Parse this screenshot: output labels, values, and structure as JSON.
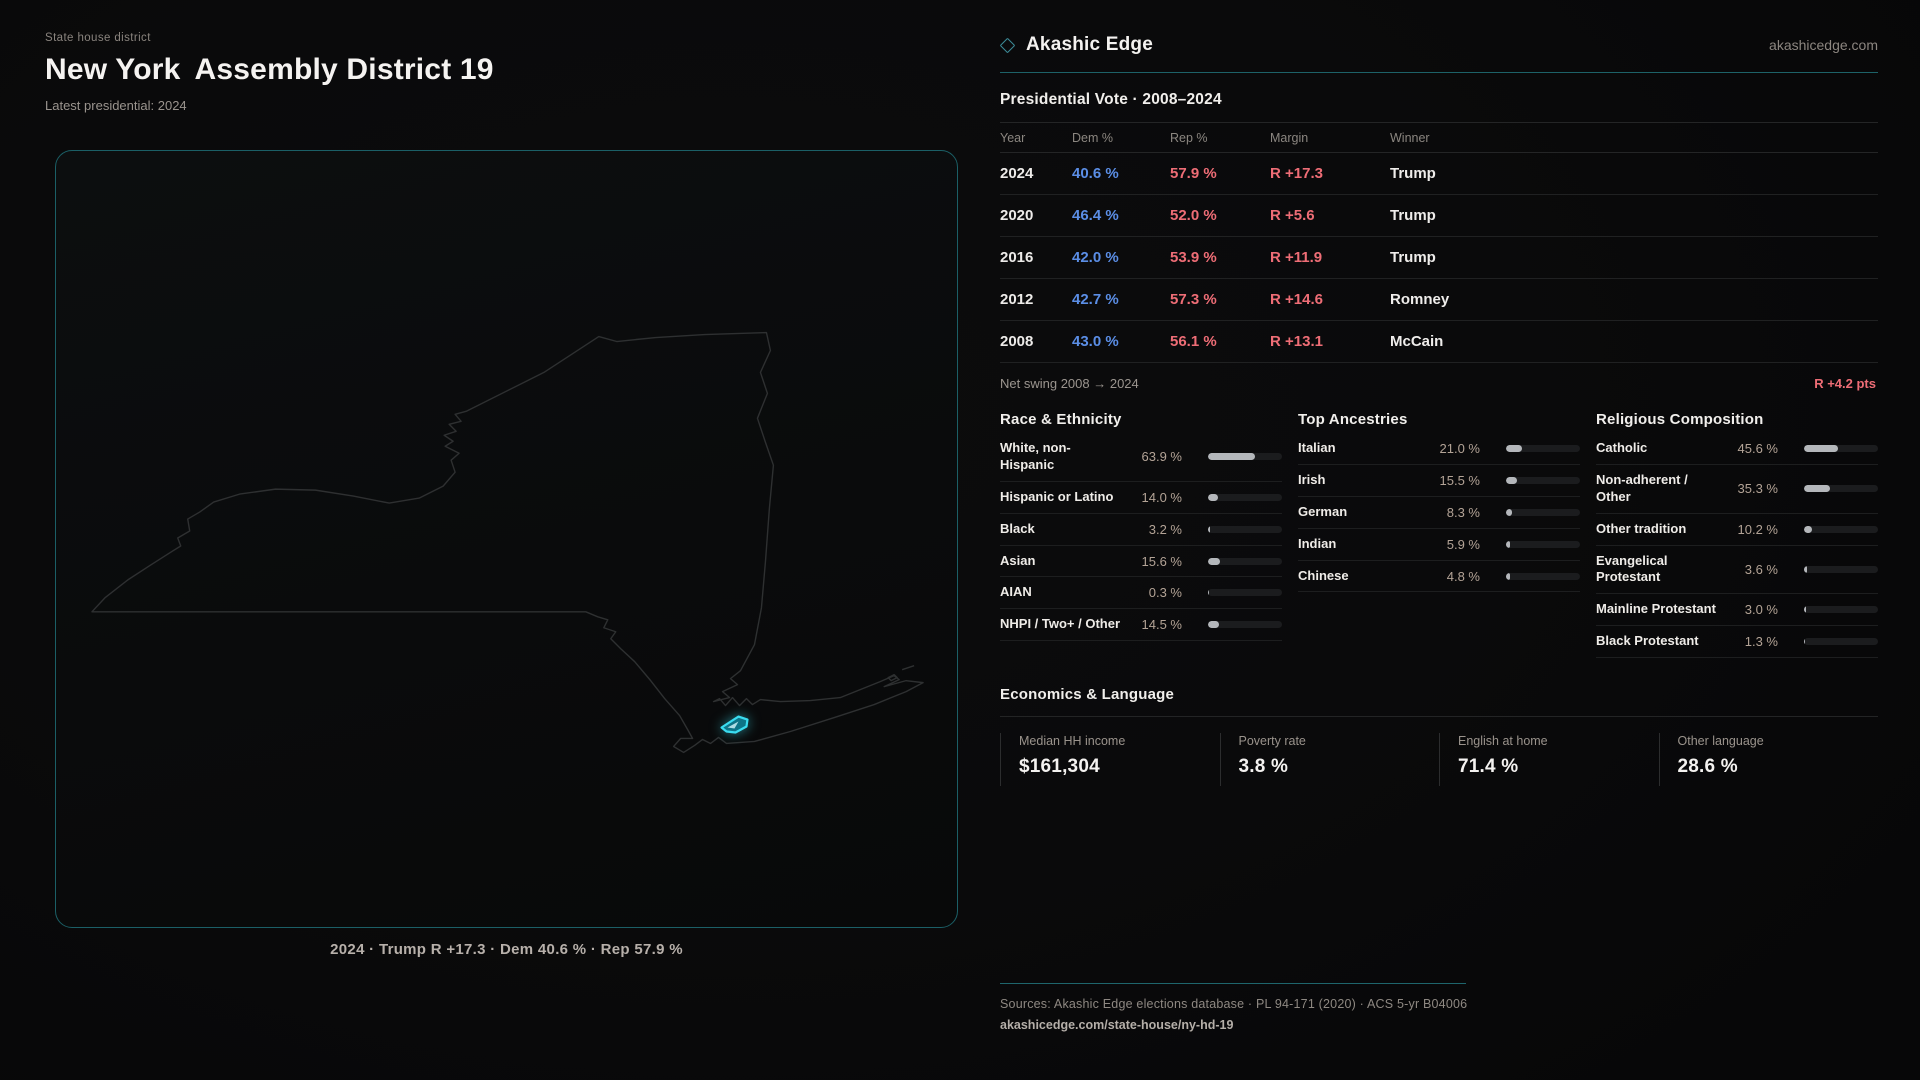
{
  "left": {
    "eyebrow": "State house district",
    "title_state": "New York",
    "title_rest": "Assembly District 19",
    "subtitle": "Latest presidential: 2024",
    "map_caption": "2024 · Trump R +17.3 · Dem 40.6 % · Rep 57.9 %"
  },
  "brand": {
    "name": "Akashic Edge",
    "site": "akashicedge.com",
    "diamond_icon": "diamond-outline",
    "accent_teal": "#1d6268",
    "accent_cyan": "#3adcf0"
  },
  "vote_table": {
    "title": "Presidential Vote · 2008–2024",
    "columns": {
      "year": "Year",
      "dem": "Dem %",
      "rep": "Rep %",
      "margin": "Margin",
      "winner": "Winner"
    },
    "rows": [
      {
        "year": "2024",
        "dem": "40.6 %",
        "rep": "57.9 %",
        "margin": "R +17.3",
        "winner": "Trump"
      },
      {
        "year": "2020",
        "dem": "46.4 %",
        "rep": "52.0 %",
        "margin": "R +5.6",
        "winner": "Trump"
      },
      {
        "year": "2016",
        "dem": "42.0 %",
        "rep": "53.9 %",
        "margin": "R +11.9",
        "winner": "Trump"
      },
      {
        "year": "2012",
        "dem": "42.7 %",
        "rep": "57.3 %",
        "margin": "R +14.6",
        "winner": "Romney"
      },
      {
        "year": "2008",
        "dem": "43.0 %",
        "rep": "56.1 %",
        "margin": "R +13.1",
        "winner": "McCain"
      }
    ],
    "net_swing_label": "Net swing 2008 → 2024",
    "net_swing_value": "R +4.2 pts",
    "dem_color": "#5b8ee6",
    "rep_color": "#ee6d76"
  },
  "demographics": {
    "race": {
      "title": "Race & Ethnicity",
      "rows": [
        {
          "label": "White, non-Hispanic",
          "value": "63.9 %",
          "pct": 63.9
        },
        {
          "label": "Hispanic or Latino",
          "value": "14.0 %",
          "pct": 14.0
        },
        {
          "label": "Black",
          "value": "3.2 %",
          "pct": 3.2
        },
        {
          "label": "Asian",
          "value": "15.6 %",
          "pct": 15.6
        },
        {
          "label": "AIAN",
          "value": "0.3 %",
          "pct": 0.3
        },
        {
          "label": "NHPI / Two+ / Other",
          "value": "14.5 %",
          "pct": 14.5
        }
      ]
    },
    "ancestries": {
      "title": "Top Ancestries",
      "rows": [
        {
          "label": "Italian",
          "value": "21.0 %",
          "pct": 21.0
        },
        {
          "label": "Irish",
          "value": "15.5 %",
          "pct": 15.5
        },
        {
          "label": "German",
          "value": "8.3 %",
          "pct": 8.3
        },
        {
          "label": "Indian",
          "value": "5.9 %",
          "pct": 5.9
        },
        {
          "label": "Chinese",
          "value": "4.8 %",
          "pct": 4.8
        }
      ]
    },
    "religion": {
      "title": "Religious Composition",
      "rows": [
        {
          "label": "Catholic",
          "value": "45.6 %",
          "pct": 45.6
        },
        {
          "label": "Non-adherent / Other",
          "value": "35.3 %",
          "pct": 35.3
        },
        {
          "label": "Other tradition",
          "value": "10.2 %",
          "pct": 10.2
        },
        {
          "label": "Evangelical Protestant",
          "value": "3.6 %",
          "pct": 3.6
        },
        {
          "label": "Mainline Protestant",
          "value": "3.0 %",
          "pct": 3.0
        },
        {
          "label": "Black Protestant",
          "value": "1.3 %",
          "pct": 1.3
        }
      ]
    }
  },
  "economics": {
    "title": "Economics & Language",
    "stats": [
      {
        "label": "Median HH income",
        "value": "$161,304"
      },
      {
        "label": "Poverty rate",
        "value": "3.8 %"
      },
      {
        "label": "English at home",
        "value": "71.4 %"
      },
      {
        "label": "Other language",
        "value": "28.6 %"
      }
    ]
  },
  "footer": {
    "sources": "Sources: Akashic Edge elections database · PL 94-171 (2020) · ACS 5-yr B04006",
    "permalink": "akashicedge.com/state-house/ny-hd-19"
  },
  "chart_data": [
    {
      "type": "table",
      "title": "Presidential Vote · 2008–2024",
      "columns": [
        "Year",
        "Dem %",
        "Rep %",
        "Margin",
        "Winner"
      ],
      "rows": [
        [
          "2024",
          40.6,
          57.9,
          "R +17.3",
          "Trump"
        ],
        [
          "2020",
          46.4,
          52.0,
          "R +5.6",
          "Trump"
        ],
        [
          "2016",
          42.0,
          53.9,
          "R +11.9",
          "Trump"
        ],
        [
          "2012",
          42.7,
          57.3,
          "R +14.6",
          "Romney"
        ],
        [
          "2008",
          43.0,
          56.1,
          "R +13.1",
          "McCain"
        ]
      ],
      "footnote": "Net swing 2008 → 2024: R +4.2 pts"
    },
    {
      "type": "bar",
      "title": "Race & Ethnicity",
      "categories": [
        "White, non-Hispanic",
        "Hispanic or Latino",
        "Black",
        "Asian",
        "AIAN",
        "NHPI / Two+ / Other"
      ],
      "values": [
        63.9,
        14.0,
        3.2,
        15.6,
        0.3,
        14.5
      ],
      "xlim": [
        0,
        100
      ],
      "unit": "%"
    },
    {
      "type": "bar",
      "title": "Top Ancestries",
      "categories": [
        "Italian",
        "Irish",
        "German",
        "Indian",
        "Chinese"
      ],
      "values": [
        21.0,
        15.5,
        8.3,
        5.9,
        4.8
      ],
      "xlim": [
        0,
        100
      ],
      "unit": "%"
    },
    {
      "type": "bar",
      "title": "Religious Composition",
      "categories": [
        "Catholic",
        "Non-adherent / Other",
        "Other tradition",
        "Evangelical Protestant",
        "Mainline Protestant",
        "Black Protestant"
      ],
      "values": [
        45.6,
        35.3,
        10.2,
        3.6,
        3.0,
        1.3
      ],
      "xlim": [
        0,
        100
      ],
      "unit": "%"
    }
  ]
}
